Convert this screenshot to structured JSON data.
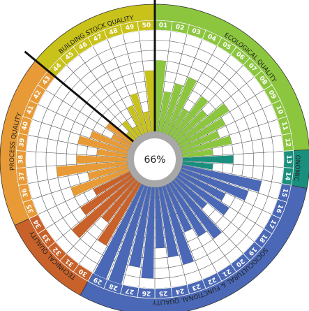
{
  "chart_data": {
    "type": "radial-bar",
    "center_label": "66%",
    "rlim": [
      0,
      10
    ],
    "rticks": [
      0,
      1,
      2,
      3,
      4,
      5,
      6,
      7,
      8,
      9,
      10
    ],
    "grid": true,
    "groups": [
      {
        "name": "ECOLOGICAL QUALITY",
        "color": "#8cc63f",
        "categories": [
          "01",
          "02",
          "03",
          "04",
          "05",
          "06",
          "07",
          "08",
          "09",
          "10",
          "11",
          "12"
        ],
        "values": [
          7,
          4,
          5,
          6,
          3,
          5,
          4,
          6,
          5,
          4,
          5,
          3
        ]
      },
      {
        "name": "ECONOMIC Q.",
        "color": "#1a8f7e",
        "categories": [
          "13",
          "14"
        ],
        "values": [
          5,
          3
        ]
      },
      {
        "name": "SOCIOCULTURAL & FUNCTIONAL QUALITY",
        "color": "#4a68b5",
        "categories": [
          "15",
          "16",
          "17",
          "18",
          "19",
          "20",
          "21",
          "22",
          "23",
          "24",
          "25",
          "26",
          "27",
          "28",
          "29"
        ],
        "values": [
          8,
          7,
          5,
          6,
          4,
          7,
          6,
          5,
          8,
          7,
          6,
          9,
          8,
          10,
          10
        ]
      },
      {
        "name": "TECHNICAL QUALITY",
        "color": "#c8622a",
        "categories": [
          "30",
          "31",
          "32",
          "33",
          "34"
        ],
        "values": [
          7,
          5,
          8,
          6,
          4
        ]
      },
      {
        "name": "PROCESS QUALITY",
        "color": "#e79a35",
        "categories": [
          "35",
          "36",
          "37",
          "38",
          "39",
          "40",
          "41",
          "42",
          "43"
        ],
        "values": [
          6,
          4,
          7,
          5,
          3,
          5,
          4,
          2,
          3
        ]
      },
      {
        "name": "BUILDING STOCK QUALITY",
        "color": "#c8c21a",
        "categories": [
          "44",
          "45",
          "46",
          "47",
          "48",
          "49",
          "50"
        ],
        "values": [
          1,
          2,
          1,
          3,
          4,
          2,
          6
        ]
      }
    ]
  }
}
